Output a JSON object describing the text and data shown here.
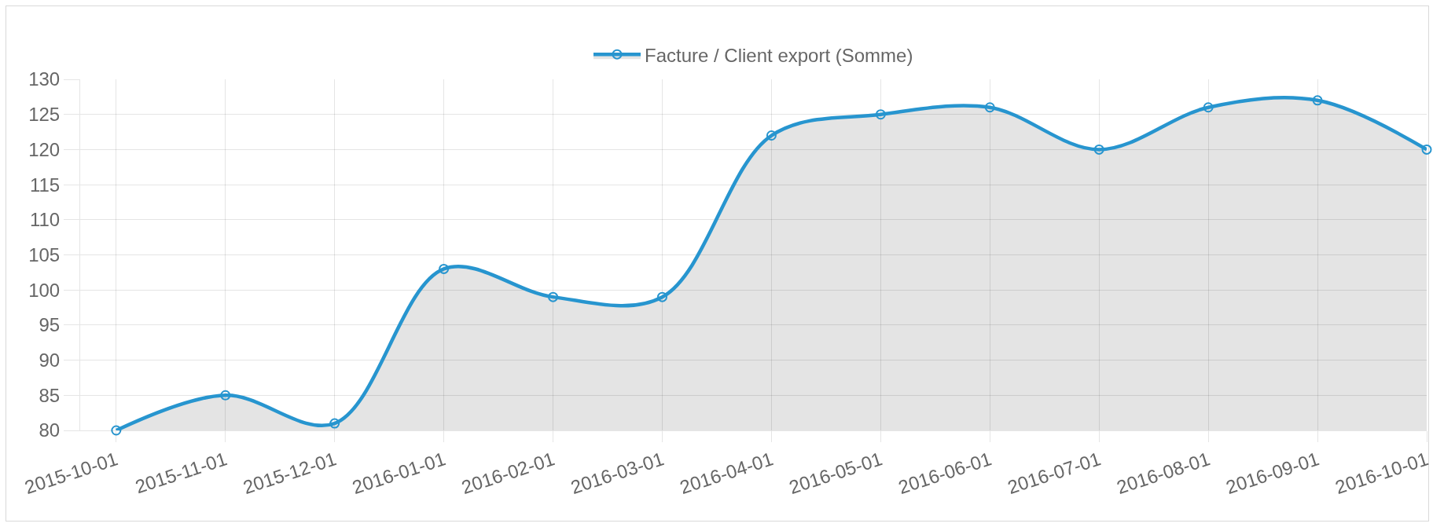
{
  "chart_data": {
    "type": "area",
    "categories": [
      "2015-10-01",
      "2015-11-01",
      "2015-12-01",
      "2016-01-01",
      "2016-02-01",
      "2016-03-01",
      "2016-04-01",
      "2016-05-01",
      "2016-06-01",
      "2016-07-01",
      "2016-08-01",
      "2016-09-01",
      "2016-10-01"
    ],
    "series": [
      {
        "name": "Facture / Client export (Somme)",
        "color": "#2795cf",
        "values": [
          80,
          85,
          81,
          103,
          99,
          99,
          122,
          125,
          126,
          120,
          126,
          127,
          120
        ]
      }
    ],
    "ylim": [
      80,
      130
    ],
    "yticks": [
      80,
      85,
      90,
      95,
      100,
      105,
      110,
      115,
      120,
      125,
      130
    ],
    "grid": true,
    "legend": "top",
    "marker": "circle",
    "line_style": "solid"
  }
}
